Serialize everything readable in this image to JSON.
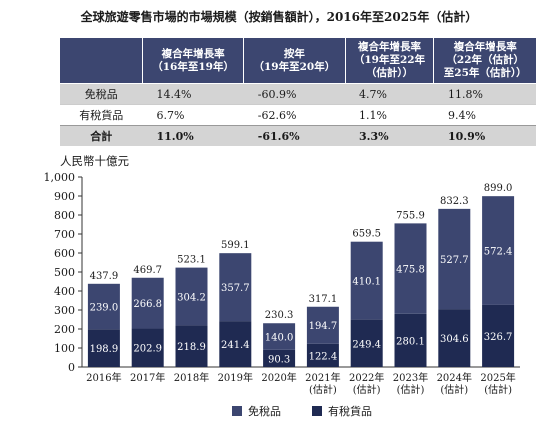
{
  "title": "全球旅遊零售市場的市場規模（按銷售額計），2016年至2025年（估計）",
  "table": {
    "headers": [
      "",
      "複合年增長率\n（16年至19年）",
      "按年\n（19年至20年）",
      "複合年增長率\n（19年至22年\n（估計））",
      "複合年增長率\n（22年（估計）\n至25年（估計））"
    ],
    "rows": [
      {
        "label": "免稅品",
        "values": [
          "14.4%",
          "-60.9%",
          "4.7%",
          "11.8%"
        ]
      },
      {
        "label": "有稅貨品",
        "values": [
          "6.7%",
          "-62.6%",
          "1.1%",
          "9.4%"
        ]
      },
      {
        "label": "合計",
        "values": [
          "11.0%",
          "-61.6%",
          "3.3%",
          "10.9%"
        ]
      }
    ]
  },
  "chart_data": {
    "type": "bar",
    "stacked": true,
    "ylabel": "人民幣十億元",
    "ylim": [
      0,
      1000
    ],
    "yticks": [
      "0",
      "100",
      "200",
      "300",
      "400",
      "500",
      "600",
      "700",
      "800",
      "900",
      "1,000"
    ],
    "categories": [
      "2016年",
      "2017年",
      "2018年",
      "2019年",
      "2020年",
      "2021年\n(估計)",
      "2022年\n(估計)",
      "2023年\n(估計)",
      "2024年\n(估計)",
      "2025年\n(估計)"
    ],
    "series": [
      {
        "name": "有稅貨品",
        "color": "#1f2a52",
        "values": [
          198.9,
          202.9,
          218.9,
          241.4,
          90.3,
          122.4,
          249.4,
          280.1,
          304.6,
          326.7
        ]
      },
      {
        "name": "免稅品",
        "color": "#3c4670",
        "values": [
          239.0,
          266.8,
          304.2,
          357.7,
          140.0,
          194.7,
          410.1,
          475.8,
          527.7,
          572.4
        ]
      }
    ],
    "totals": [
      437.9,
      469.7,
      523.1,
      599.1,
      230.3,
      317.1,
      659.5,
      755.9,
      832.3,
      899.0
    ],
    "legend": [
      "免稅品",
      "有稅貨品"
    ],
    "legend_position": "bottom"
  }
}
